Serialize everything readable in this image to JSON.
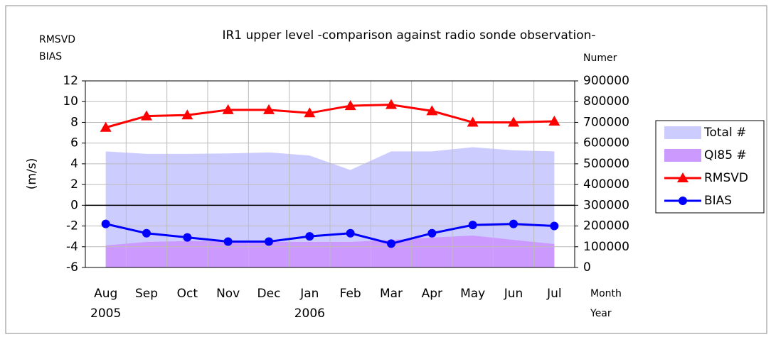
{
  "chart_data": {
    "type": "line",
    "title": "IR1 upper level -comparison against radio sonde observation-",
    "y_axis_label_lines": [
      "RMSVD",
      "BIAS"
    ],
    "y_axis_unit": "(m/s)",
    "y2_axis_label": "Numer",
    "x_axis_labels": [
      "Month",
      "Year"
    ],
    "categories": [
      "Aug",
      "Sep",
      "Oct",
      "Nov",
      "Dec",
      "Jan",
      "Feb",
      "Mar",
      "Apr",
      "May",
      "Jun",
      "Jul"
    ],
    "years": [
      "2005",
      null,
      null,
      null,
      null,
      "2006",
      null,
      null,
      null,
      null,
      null,
      null
    ],
    "ylim": [
      -6,
      12
    ],
    "yticks": [
      -6,
      -4,
      -2,
      0,
      2,
      4,
      6,
      8,
      10,
      12
    ],
    "y2lim": [
      0,
      900000
    ],
    "y2ticks": [
      0,
      100000,
      200000,
      300000,
      400000,
      500000,
      600000,
      700000,
      800000,
      900000
    ],
    "grid": true,
    "legend": "right",
    "series": [
      {
        "name": "Total #",
        "type": "area",
        "axis": "y2",
        "color": "#ccccff",
        "values": [
          560000,
          548000,
          548000,
          550000,
          555000,
          540000,
          470000,
          560000,
          560000,
          580000,
          565000,
          560000
        ]
      },
      {
        "name": "QI85 #",
        "type": "area",
        "axis": "y2",
        "color": "#cc99ff",
        "values": [
          106000,
          123000,
          127000,
          127000,
          123000,
          123000,
          123000,
          133000,
          144000,
          154000,
          133000,
          113000
        ]
      },
      {
        "name": "RMSVD",
        "type": "line",
        "marker": "triangle",
        "color": "#ff0000",
        "values": [
          7.5,
          8.6,
          8.7,
          9.2,
          9.2,
          8.9,
          9.6,
          9.7,
          9.1,
          8.0,
          8.0,
          8.1
        ]
      },
      {
        "name": "BIAS",
        "type": "line",
        "marker": "circle",
        "color": "#0000ff",
        "values": [
          -1.8,
          -2.7,
          -3.1,
          -3.5,
          -3.5,
          -3.0,
          -2.7,
          -3.7,
          -2.7,
          -1.9,
          -1.8,
          -2.0
        ]
      }
    ]
  }
}
